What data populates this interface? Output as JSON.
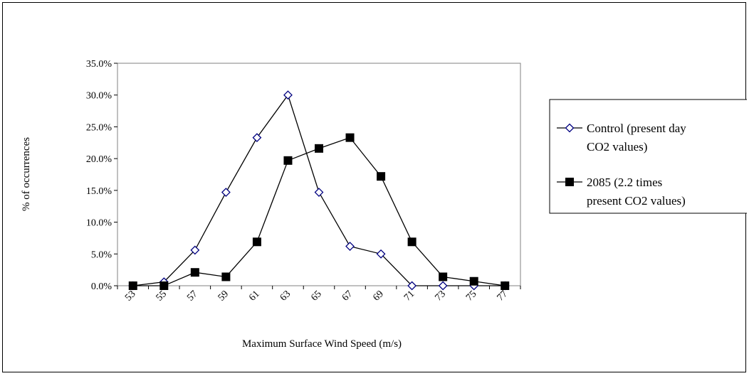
{
  "chart_data": {
    "type": "line",
    "title": "",
    "xlabel": "Maximum Surface Wind Speed (m/s)",
    "ylabel": "% of occurrences",
    "categories": [
      "53",
      "55",
      "57",
      "59",
      "61",
      "63",
      "65",
      "67",
      "69",
      "71",
      "73",
      "75",
      "77"
    ],
    "ylim": [
      0,
      35
    ],
    "yticks": [
      "0.0%",
      "5.0%",
      "10.0%",
      "15.0%",
      "20.0%",
      "25.0%",
      "30.0%",
      "35.0%"
    ],
    "grid": false,
    "legend_position": "right",
    "series": [
      {
        "name": "Control (present day CO2 values)",
        "legend_lines": [
          "Control (present day",
          "CO2 values)"
        ],
        "marker": "open-diamond",
        "color": "#000080",
        "values": [
          0.0,
          0.6,
          5.6,
          14.7,
          23.3,
          30.0,
          14.7,
          6.2,
          5.0,
          0.0,
          0.0,
          0.0,
          0.0
        ]
      },
      {
        "name": "2085 (2.2 times present CO2 values)",
        "legend_lines": [
          "2085 (2.2 times",
          "present CO2 values)"
        ],
        "marker": "filled-square",
        "color": "#000000",
        "values": [
          0.0,
          0.0,
          2.1,
          1.4,
          6.9,
          19.7,
          21.6,
          23.3,
          17.2,
          6.9,
          1.4,
          0.7,
          0.0
        ]
      }
    ]
  }
}
